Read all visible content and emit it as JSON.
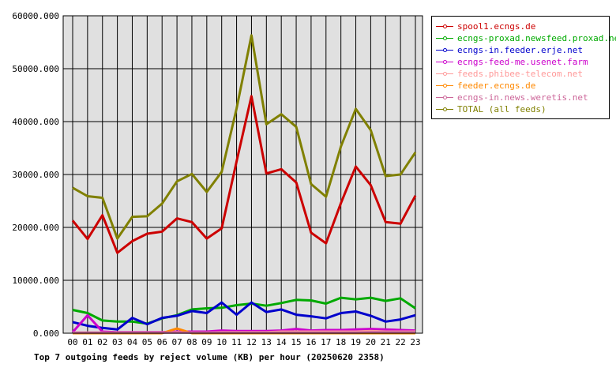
{
  "caption": "Top 7 outgoing feeds by reject volume (KB) per hour (20250620 2358)",
  "chart_data": {
    "type": "line",
    "title": "Top 7 outgoing feeds by reject volume (KB) per hour (20250620 2358)",
    "xlabel": "",
    "ylabel": "",
    "categories": [
      "00",
      "01",
      "02",
      "03",
      "04",
      "05",
      "06",
      "07",
      "08",
      "09",
      "10",
      "11",
      "12",
      "13",
      "14",
      "15",
      "16",
      "17",
      "18",
      "19",
      "20",
      "21",
      "22",
      "23"
    ],
    "ylim": [
      0,
      60000
    ],
    "yticks": [
      0,
      10000,
      20000,
      30000,
      40000,
      50000,
      60000
    ],
    "ytick_labels": [
      "0.000",
      "10000.000",
      "20000.000",
      "30000.000",
      "40000.000",
      "50000.000",
      "60000.000"
    ],
    "grid": true,
    "legend_position": "right",
    "plot_background": "#e0e0e0",
    "series": [
      {
        "name": "spool1.ecngs.de",
        "color": "#cc0000",
        "values": [
          21300,
          17800,
          22300,
          15200,
          17400,
          18800,
          19200,
          21700,
          21000,
          17900,
          19800,
          32500,
          44800,
          30200,
          31000,
          28500,
          19000,
          17000,
          24600,
          31500,
          28000,
          21000,
          20700,
          26000
        ]
      },
      {
        "name": "ecngs-proxad.newsfeed.proxad.net",
        "color": "#00aa00",
        "values": [
          4400,
          3800,
          2400,
          2200,
          2200,
          1800,
          2800,
          3400,
          4500,
          4700,
          4800,
          5300,
          5600,
          5200,
          5700,
          6300,
          6200,
          5600,
          6700,
          6400,
          6700,
          6100,
          6600,
          4700
        ]
      },
      {
        "name": "ecngs-in.feeder.erje.net",
        "color": "#0000cc",
        "values": [
          2100,
          1400,
          1000,
          700,
          2900,
          1700,
          2900,
          3300,
          4200,
          3800,
          5800,
          3500,
          5800,
          4000,
          4500,
          3500,
          3200,
          2800,
          3800,
          4100,
          3300,
          2200,
          2600,
          3400
        ]
      },
      {
        "name": "ecngs-feed-me.usenet.farm",
        "color": "#cc00cc",
        "values": [
          200,
          3400,
          300,
          200,
          200,
          200,
          200,
          300,
          300,
          300,
          500,
          400,
          400,
          400,
          500,
          800,
          500,
          600,
          600,
          700,
          800,
          700,
          600,
          500
        ]
      },
      {
        "name": "feeds.phibee-telecom.net",
        "color": "#ff9999",
        "values": [
          100,
          100,
          100,
          100,
          100,
          100,
          100,
          200,
          100,
          100,
          200,
          200,
          200,
          200,
          300,
          300,
          300,
          300,
          300,
          300,
          400,
          300,
          300,
          300
        ]
      },
      {
        "name": "feeder.ecngs.de",
        "color": "#ff8800",
        "values": [
          0,
          0,
          0,
          0,
          0,
          0,
          0,
          900,
          0,
          0,
          0,
          0,
          0,
          0,
          0,
          0,
          0,
          0,
          0,
          0,
          0,
          0,
          0,
          0
        ]
      },
      {
        "name": "ecngs-in.news.weretis.net",
        "color": "#cc6699",
        "values": [
          100,
          100,
          100,
          100,
          100,
          100,
          100,
          100,
          100,
          100,
          100,
          100,
          100,
          100,
          100,
          100,
          100,
          100,
          100,
          100,
          200,
          200,
          200,
          200
        ]
      },
      {
        "name": "TOTAL (all feeds)",
        "color": "#808000",
        "values": [
          27500,
          25900,
          25600,
          17900,
          22000,
          22100,
          24500,
          28700,
          30100,
          26700,
          30500,
          42500,
          56300,
          39500,
          41400,
          39000,
          28200,
          25800,
          35300,
          42400,
          38400,
          29700,
          30000,
          34200
        ]
      }
    ]
  }
}
